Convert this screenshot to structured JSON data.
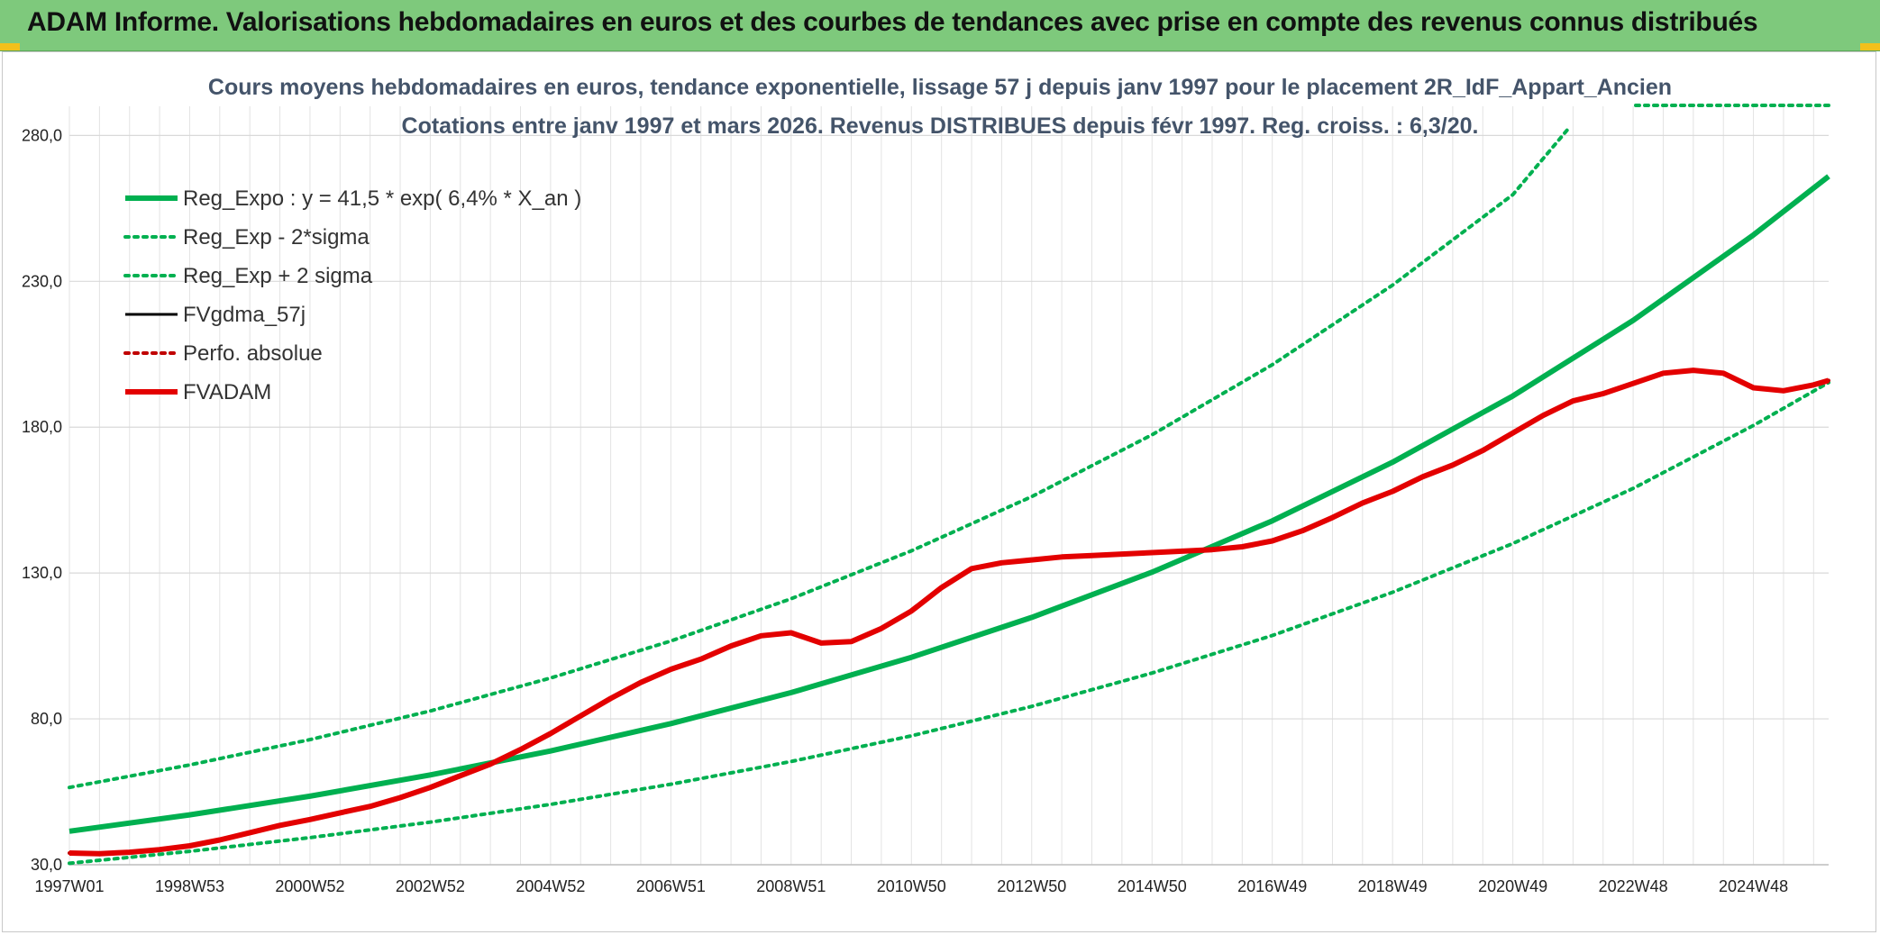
{
  "app": {
    "title": "ADAM Informe. Valorisations hebdomadaires en euros et des courbes de tendances avec prise en compte des revenus connus distribués"
  },
  "chart_data": {
    "type": "line",
    "title_line1": "Cours moyens hebdomadaires en euros, tendance exponentielle, lissage 57 j depuis janv 1997 pour le placement 2R_IdF_Appart_Ancien",
    "title_line2": "Cotations entre janv 1997 et mars 2026. Revenus DISTRIBUES depuis févr 1997. Reg. croiss. : 6,3/20.",
    "xlabel": "",
    "ylabel": "",
    "x_range": [
      1997.0,
      2026.25
    ],
    "ylim": [
      30,
      290
    ],
    "y_ticks": [
      30,
      80,
      130,
      180,
      230,
      280
    ],
    "y_tick_labels": [
      "30,0",
      "80,0",
      "130,0",
      "180,0",
      "230,0",
      "280,0"
    ],
    "x_ticks": [
      {
        "label": "1997W01",
        "x": 1997.0
      },
      {
        "label": "1998W53",
        "x": 1999.0
      },
      {
        "label": "2000W52",
        "x": 2001.0
      },
      {
        "label": "2002W52",
        "x": 2003.0
      },
      {
        "label": "2004W52",
        "x": 2005.0
      },
      {
        "label": "2006W51",
        "x": 2007.0
      },
      {
        "label": "2008W51",
        "x": 2009.0
      },
      {
        "label": "2010W50",
        "x": 2011.0
      },
      {
        "label": "2012W50",
        "x": 2013.0
      },
      {
        "label": "2014W50",
        "x": 2015.0
      },
      {
        "label": "2016W49",
        "x": 2017.0
      },
      {
        "label": "2018W49",
        "x": 2019.0
      },
      {
        "label": "2020W49",
        "x": 2021.0
      },
      {
        "label": "2022W48",
        "x": 2023.0
      },
      {
        "label": "2024W48",
        "x": 2025.0
      }
    ],
    "grid": true,
    "legend_position": "top-left",
    "series": [
      {
        "name": "Reg_Expo : y = 41,5 * exp( 6,4% *  X_an )",
        "color": "#00b050",
        "style": "solid-thick",
        "x": [
          1997.0,
          1999.0,
          2001.0,
          2003.0,
          2005.0,
          2007.0,
          2009.0,
          2011.0,
          2013.0,
          2015.0,
          2017.0,
          2019.0,
          2021.0,
          2023.0,
          2025.0,
          2026.25
        ],
        "y": [
          41.5,
          47.1,
          53.5,
          60.8,
          69.0,
          78.4,
          89.0,
          101.1,
          114.8,
          130.3,
          147.9,
          168.0,
          190.7,
          216.6,
          245.9,
          266.0
        ]
      },
      {
        "name": "Reg_Exp - 2*sigma",
        "color": "#00b050",
        "style": "dotted",
        "x": [
          1997.0,
          1999.0,
          2001.0,
          2003.0,
          2005.0,
          2007.0,
          2009.0,
          2011.0,
          2013.0,
          2015.0,
          2017.0,
          2019.0,
          2021.0,
          2023.0,
          2025.0,
          2026.25
        ],
        "y": [
          30.5,
          34.6,
          39.3,
          44.6,
          50.7,
          57.6,
          65.4,
          74.2,
          84.3,
          95.7,
          108.6,
          123.4,
          140.1,
          159.0,
          180.6,
          195.3
        ]
      },
      {
        "name": "Reg_Exp + 2 sigma",
        "color": "#00b050",
        "style": "dotted",
        "x": [
          1997.0,
          1999.0,
          2001.0,
          2003.0,
          2005.0,
          2007.0,
          2009.0,
          2011.0,
          2013.0,
          2015.0,
          2017.0,
          2019.0,
          2021.0,
          2021.95
        ],
        "y": [
          56.5,
          64.2,
          72.9,
          82.7,
          94.0,
          106.7,
          121.2,
          137.6,
          156.2,
          177.4,
          201.4,
          228.7,
          259.7,
          283.0
        ]
      },
      {
        "name": "FVgdma_57j",
        "color": "#000000",
        "style": "solid",
        "x": [
          1997.0,
          1997.5,
          1998.0,
          1998.5,
          1999.0,
          1999.5,
          2000.0,
          2000.5,
          2001.0,
          2001.5,
          2002.0,
          2002.5,
          2003.0,
          2003.5,
          2004.0,
          2004.5,
          2005.0,
          2005.5,
          2006.0,
          2006.5,
          2007.0,
          2007.5,
          2008.0,
          2008.5,
          2009.0,
          2009.5,
          2010.0,
          2010.5,
          2011.0,
          2011.5,
          2012.0,
          2012.5,
          2013.0,
          2013.5,
          2014.0,
          2014.5,
          2015.0,
          2015.5,
          2016.0,
          2016.5,
          2017.0,
          2017.5,
          2018.0,
          2018.5,
          2019.0,
          2019.5,
          2020.0,
          2020.5,
          2021.0,
          2021.5,
          2022.0,
          2022.5,
          2023.0,
          2023.5,
          2024.0,
          2024.5,
          2025.0,
          2025.5,
          2026.0,
          2026.25
        ],
        "y": [
          34.0,
          33.8,
          34.3,
          35.2,
          36.5,
          38.5,
          41.0,
          43.5,
          45.5,
          47.8,
          50.0,
          53.0,
          56.5,
          60.5,
          64.5,
          69.5,
          75.0,
          81.0,
          87.0,
          92.5,
          97.0,
          100.5,
          105.0,
          108.5,
          109.5,
          106.0,
          106.5,
          111.0,
          117.0,
          125.0,
          131.5,
          133.5,
          134.5,
          135.5,
          136.0,
          136.5,
          137.0,
          137.5,
          138.0,
          139.0,
          141.0,
          144.5,
          149.0,
          154.0,
          158.0,
          163.0,
          167.0,
          172.0,
          178.0,
          184.0,
          189.0,
          191.5,
          195.0,
          198.5,
          199.5,
          198.5,
          193.5,
          192.5,
          194.5,
          196.0
        ]
      },
      {
        "name": "Perfo. absolue",
        "color": "#c00000",
        "style": "dotted",
        "x": [
          1997.0,
          1997.5,
          1998.0,
          1998.5,
          1999.0,
          1999.5,
          2000.0,
          2000.5,
          2001.0,
          2001.5,
          2002.0,
          2002.5,
          2003.0,
          2003.5,
          2004.0,
          2004.5,
          2005.0,
          2005.5,
          2006.0,
          2006.5,
          2007.0,
          2007.5,
          2008.0,
          2008.5,
          2009.0,
          2009.5,
          2010.0,
          2010.5,
          2011.0,
          2011.5,
          2012.0,
          2012.5,
          2013.0,
          2013.5,
          2014.0,
          2014.5,
          2015.0,
          2015.5,
          2016.0,
          2016.5,
          2017.0,
          2017.5,
          2018.0,
          2018.5,
          2019.0,
          2019.5,
          2020.0,
          2020.5,
          2021.0,
          2021.5,
          2022.0,
          2022.5,
          2023.0,
          2023.5,
          2024.0,
          2024.5,
          2025.0,
          2025.5,
          2026.0,
          2026.25
        ],
        "y": [
          34.0,
          33.8,
          34.3,
          35.2,
          36.5,
          38.5,
          41.0,
          43.5,
          45.5,
          47.8,
          50.0,
          53.0,
          56.5,
          60.5,
          64.5,
          69.5,
          75.0,
          81.0,
          87.0,
          92.5,
          97.0,
          100.5,
          105.0,
          108.5,
          109.5,
          106.0,
          106.5,
          111.0,
          117.0,
          125.0,
          131.5,
          133.5,
          134.5,
          135.5,
          136.0,
          136.5,
          137.0,
          137.5,
          138.0,
          139.0,
          141.0,
          144.5,
          149.0,
          154.0,
          158.0,
          163.0,
          167.0,
          172.0,
          178.0,
          184.0,
          189.0,
          191.5,
          195.0,
          198.5,
          199.5,
          198.5,
          193.5,
          192.5,
          194.5,
          196.0
        ]
      },
      {
        "name": "FVADAM",
        "color": "#e30000",
        "style": "solid-thick",
        "x": [
          1997.0,
          1997.5,
          1998.0,
          1998.5,
          1999.0,
          1999.5,
          2000.0,
          2000.5,
          2001.0,
          2001.5,
          2002.0,
          2002.5,
          2003.0,
          2003.5,
          2004.0,
          2004.5,
          2005.0,
          2005.5,
          2006.0,
          2006.5,
          2007.0,
          2007.5,
          2008.0,
          2008.5,
          2009.0,
          2009.5,
          2010.0,
          2010.5,
          2011.0,
          2011.5,
          2012.0,
          2012.5,
          2013.0,
          2013.5,
          2014.0,
          2014.5,
          2015.0,
          2015.5,
          2016.0,
          2016.5,
          2017.0,
          2017.5,
          2018.0,
          2018.5,
          2019.0,
          2019.5,
          2020.0,
          2020.5,
          2021.0,
          2021.5,
          2022.0,
          2022.5,
          2023.0,
          2023.5,
          2024.0,
          2024.5,
          2025.0,
          2025.5,
          2026.0,
          2026.25
        ],
        "y": [
          34.0,
          33.8,
          34.3,
          35.2,
          36.5,
          38.5,
          41.0,
          43.5,
          45.5,
          47.8,
          50.0,
          53.0,
          56.5,
          60.5,
          64.5,
          69.5,
          75.0,
          81.0,
          87.0,
          92.5,
          97.0,
          100.5,
          105.0,
          108.5,
          109.5,
          106.0,
          106.5,
          111.0,
          117.0,
          125.0,
          131.5,
          133.5,
          134.5,
          135.5,
          136.0,
          136.5,
          137.0,
          137.5,
          138.0,
          139.0,
          141.0,
          144.5,
          149.0,
          154.0,
          158.0,
          163.0,
          167.0,
          172.0,
          178.0,
          184.0,
          189.0,
          191.5,
          195.0,
          198.5,
          199.5,
          198.5,
          193.5,
          192.5,
          194.5,
          196.0
        ]
      }
    ]
  }
}
